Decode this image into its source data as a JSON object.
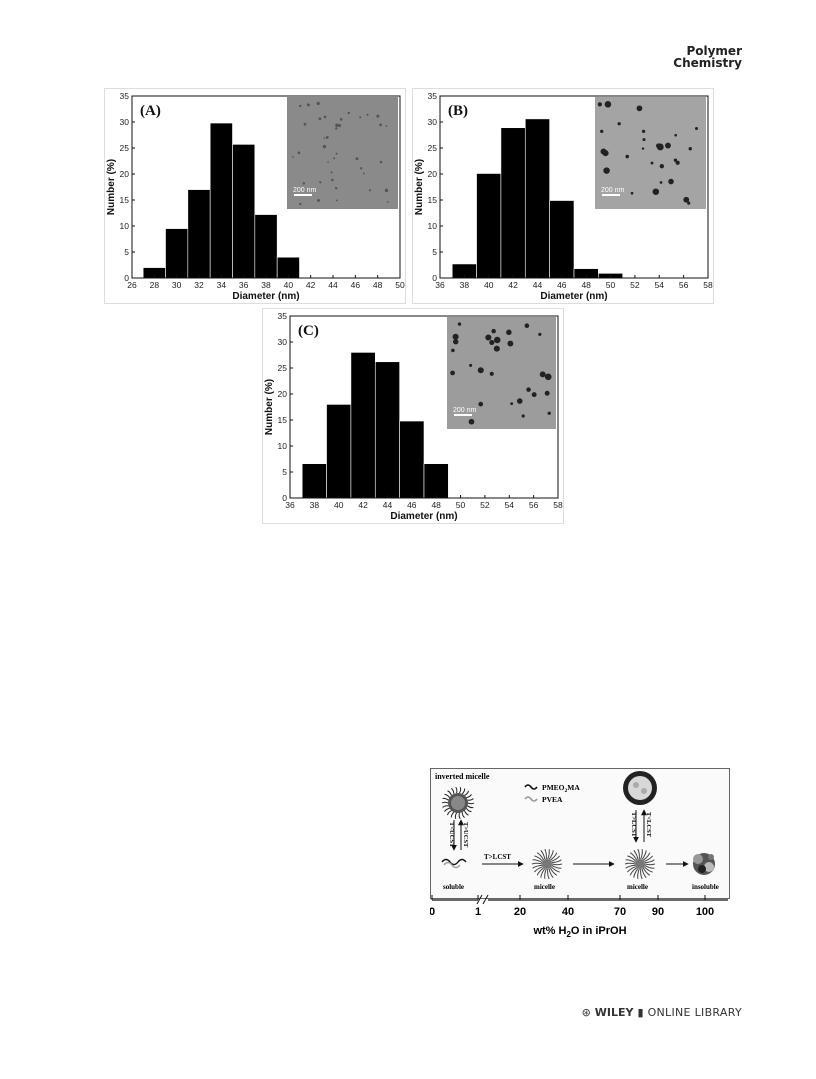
{
  "journal": {
    "line1": "Polymer",
    "line2": "Chemistry"
  },
  "chart_data": [
    {
      "type": "bar",
      "panel_label": "(A)",
      "xlabel": "Diameter (nm)",
      "ylabel": "Number (%)",
      "xlim": [
        26,
        50
      ],
      "ylim": [
        0,
        35
      ],
      "xticks": [
        26,
        28,
        30,
        32,
        34,
        36,
        38,
        40,
        42,
        44,
        46,
        48,
        50
      ],
      "yticks": [
        0,
        5,
        10,
        15,
        20,
        25,
        30,
        35
      ],
      "bin_width": 2,
      "bins": [
        28,
        30,
        32,
        34,
        36,
        38,
        40
      ],
      "values": [
        2,
        9.5,
        17,
        29.8,
        25.7,
        12.2,
        4
      ],
      "inset": {
        "scale_bar": "200 nm",
        "tone": "#8a8a8a"
      }
    },
    {
      "type": "bar",
      "panel_label": "(B)",
      "xlabel": "Diameter (nm)",
      "ylabel": "Number (%)",
      "xlim": [
        36,
        58
      ],
      "ylim": [
        0,
        35
      ],
      "xticks": [
        36,
        38,
        40,
        42,
        44,
        46,
        48,
        50,
        52,
        54,
        56,
        58
      ],
      "yticks": [
        0,
        5,
        10,
        15,
        20,
        25,
        30,
        35
      ],
      "bin_width": 2,
      "bins": [
        38,
        40,
        42,
        44,
        46,
        48,
        50
      ],
      "values": [
        2.7,
        20.1,
        28.9,
        30.6,
        14.9,
        1.8,
        0.9
      ],
      "inset": {
        "scale_bar": "200 nm",
        "tone": "#a4a4a4"
      }
    },
    {
      "type": "bar",
      "panel_label": "(C)",
      "xlabel": "Diameter (nm)",
      "ylabel": "Number (%)",
      "xlim": [
        36,
        58
      ],
      "ylim": [
        0,
        35
      ],
      "xticks": [
        36,
        38,
        40,
        42,
        44,
        46,
        48,
        50,
        52,
        54,
        56,
        58
      ],
      "yticks": [
        0,
        5,
        10,
        15,
        20,
        25,
        30,
        35
      ],
      "bin_width": 2,
      "bins": [
        38,
        40,
        42,
        44,
        46,
        48
      ],
      "values": [
        6.6,
        18,
        28,
        26.2,
        14.8,
        6.6
      ],
      "inset": {
        "scale_bar": "200 nm",
        "tone": "#9c9c9c"
      }
    }
  ],
  "scheme": {
    "inverted_micelle": "inverted micelle",
    "legend_pmeo2ma": "PMEO",
    "legend_pmeo2ma_sub": "2",
    "legend_pmeo2ma_end": "MA",
    "legend_pvea": "PVEA",
    "ucst_down": "T<UCST",
    "ucst_up": "T>UCST",
    "lcst_arrow": "T>LCST",
    "lcst_right_up": "T>LCST",
    "lcst_right_down": "T<LCST",
    "stage_soluble": "soluble",
    "stage_micelle1": "micelle",
    "stage_micelle2": "micelle",
    "stage_insoluble": "insoluble",
    "axis_ticks": [
      "0",
      "1",
      "20",
      "40",
      "70",
      "90",
      "100"
    ],
    "axis_title_pre": "wt% H",
    "axis_title_sub": "2",
    "axis_title_post": "O in iPrOH"
  },
  "footer": {
    "wiley": "WILEY",
    "library": "ONLINE LIBRARY"
  }
}
